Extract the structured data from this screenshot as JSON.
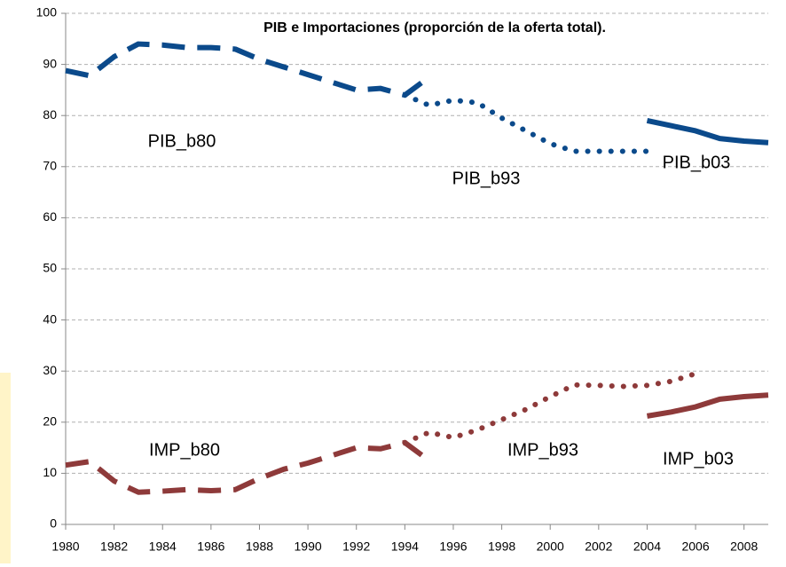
{
  "chart_data": {
    "type": "line",
    "title": "PIB e Importaciones (proporción de la oferta total).",
    "x": [
      1980,
      1981,
      1982,
      1983,
      1984,
      1985,
      1986,
      1987,
      1988,
      1989,
      1990,
      1991,
      1992,
      1993,
      1994,
      1995,
      1996,
      1997,
      1998,
      1999,
      2000,
      2001,
      2002,
      2003,
      2004,
      2005,
      2006,
      2007,
      2008,
      2009
    ],
    "xlim": [
      1980,
      2009
    ],
    "xticks": [
      1980,
      1982,
      1984,
      1986,
      1988,
      1990,
      1992,
      1994,
      1996,
      1998,
      2000,
      2002,
      2004,
      2006,
      2008
    ],
    "ylim": [
      0,
      100
    ],
    "yticks": [
      0,
      10,
      20,
      30,
      40,
      50,
      60,
      70,
      80,
      90,
      100
    ],
    "grid": true,
    "series": [
      {
        "name": "PIB_b80",
        "color": "#0b4a8b",
        "style": "dashed",
        "values": [
          88.8,
          87.8,
          91.5,
          94,
          93.8,
          93.3,
          93.3,
          93,
          91,
          89.5,
          88,
          86.5,
          85,
          85.3,
          84,
          87.5,
          null,
          null,
          null,
          null,
          null,
          null,
          null,
          null,
          null,
          null,
          null,
          null,
          null,
          null
        ]
      },
      {
        "name": "PIB_b93",
        "color": "#0b4a8b",
        "style": "dotted",
        "values": [
          null,
          null,
          null,
          null,
          null,
          null,
          null,
          null,
          null,
          null,
          null,
          null,
          null,
          null,
          84,
          82,
          83,
          82.5,
          79.5,
          77,
          74.5,
          73,
          73,
          73,
          73,
          null,
          null,
          null,
          null,
          null
        ]
      },
      {
        "name": "PIB_b03",
        "color": "#0b4a8b",
        "style": "solid",
        "values": [
          null,
          null,
          null,
          null,
          null,
          null,
          null,
          null,
          null,
          null,
          null,
          null,
          null,
          null,
          null,
          null,
          null,
          null,
          null,
          null,
          null,
          null,
          null,
          null,
          79,
          78,
          77,
          75.5,
          75,
          74.7
        ]
      },
      {
        "name": "IMP_b80",
        "color": "#8e3a3a",
        "style": "dashed",
        "values": [
          11.6,
          12.3,
          8.5,
          6.3,
          6.5,
          6.8,
          6.6,
          6.8,
          9,
          10.8,
          12,
          13.5,
          15,
          14.8,
          16,
          12.5,
          null,
          null,
          null,
          null,
          null,
          null,
          null,
          null,
          null,
          null,
          null,
          null,
          null,
          null
        ]
      },
      {
        "name": "IMP_b93",
        "color": "#8e3a3a",
        "style": "dotted",
        "values": [
          null,
          null,
          null,
          null,
          null,
          null,
          null,
          null,
          null,
          null,
          null,
          null,
          null,
          null,
          16,
          18,
          17,
          18.5,
          20.5,
          22.5,
          25,
          27.3,
          27.2,
          27,
          27.2,
          28,
          29.5,
          null,
          null,
          null
        ]
      },
      {
        "name": "IMP_b03",
        "color": "#8e3a3a",
        "style": "solid",
        "values": [
          null,
          null,
          null,
          null,
          null,
          null,
          null,
          null,
          null,
          null,
          null,
          null,
          null,
          null,
          null,
          null,
          null,
          null,
          null,
          null,
          null,
          null,
          null,
          null,
          21.2,
          22,
          23,
          24.5,
          25,
          25.3
        ]
      }
    ]
  }
}
